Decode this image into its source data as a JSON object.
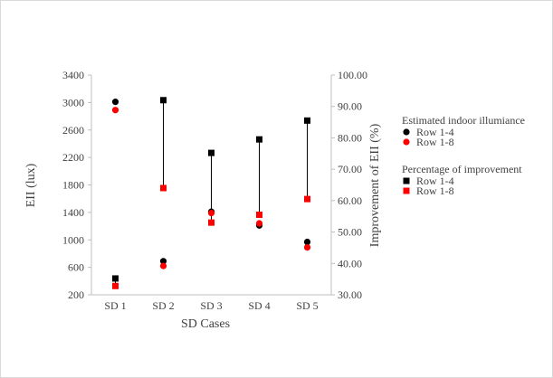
{
  "chart_data": {
    "type": "scatter",
    "categories": [
      "SD 1",
      "SD 2",
      "SD 3",
      "SD 4",
      "SD 5"
    ],
    "xlabel": "SD Cases",
    "ylabel": "EII (lux)",
    "y2label": "Improvement of EII (%)",
    "ylim": [
      200,
      3400
    ],
    "y_ticks": [
      "200",
      "600",
      "1000",
      "1400",
      "1800",
      "2200",
      "2600",
      "3000",
      "3400"
    ],
    "y2lim": [
      30,
      100
    ],
    "y2_ticks": [
      "30.00",
      "40.00",
      "50.00",
      "60.00",
      "70.00",
      "80.00",
      "90.00",
      "100.00"
    ],
    "grid": false,
    "legend_position": "right",
    "legend": {
      "group1_title": "Estimated indoor illumiance",
      "group2_title": "Percentage of improvement"
    },
    "series": [
      {
        "name": "Row 1-4",
        "group": "Estimated indoor illumiance",
        "axis": "left",
        "marker": "circle",
        "color": "#000000",
        "values": [
          3010,
          690,
          1410,
          1210,
          970
        ]
      },
      {
        "name": "Row 1-8",
        "group": "Estimated indoor illumiance",
        "axis": "left",
        "marker": "circle",
        "color": "#ff0000",
        "values": [
          2890,
          620,
          1390,
          1240,
          890
        ]
      },
      {
        "name": "Row 1-4",
        "group": "Percentage of improvement",
        "axis": "right",
        "marker": "square",
        "color": "#000000",
        "values": [
          35.2,
          92.0,
          75.2,
          79.5,
          85.5
        ]
      },
      {
        "name": "Row 1-8",
        "group": "Percentage of improvement",
        "axis": "right",
        "marker": "square",
        "color": "#ff0000",
        "values": [
          32.8,
          64.0,
          53.0,
          55.5,
          60.5
        ]
      }
    ]
  }
}
